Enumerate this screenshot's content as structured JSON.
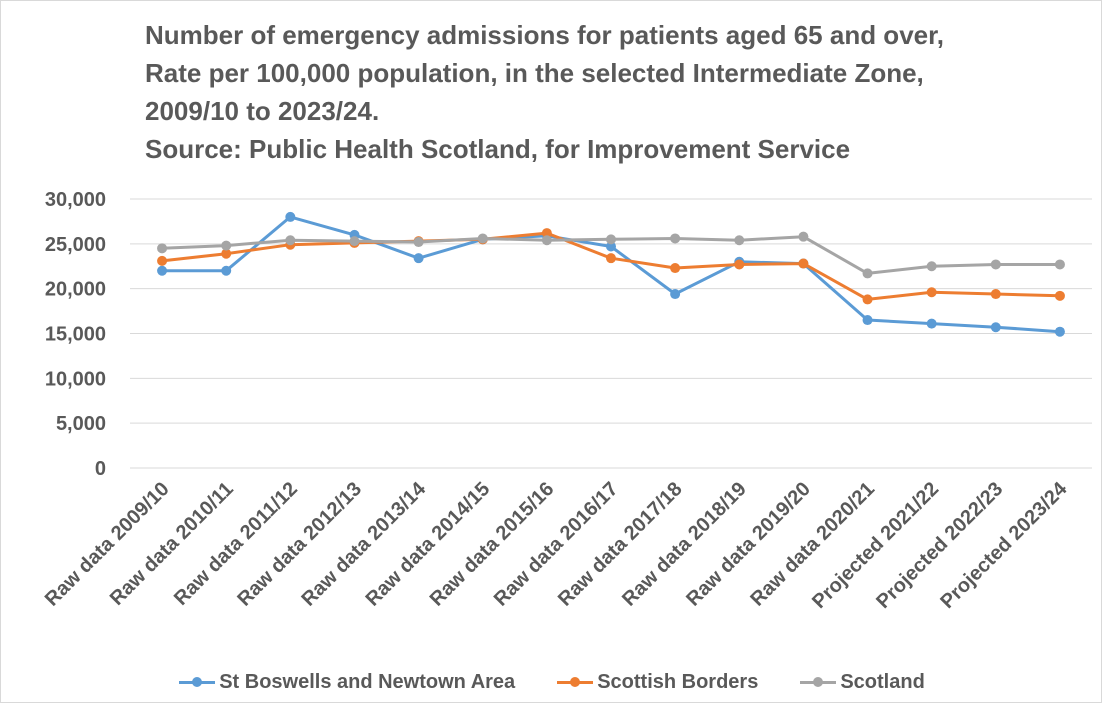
{
  "chart_data": {
    "type": "line",
    "title_lines": [
      "Number of emergency admissions for patients aged 65 and over,",
      "Rate per 100,000 population, in the selected Intermediate Zone,",
      "2009/10 to 2023/24.",
      "Source: Public Health Scotland, for Improvement Service"
    ],
    "xlabel": "",
    "ylabel": "",
    "ylim": [
      0,
      30000
    ],
    "yticks": [
      0,
      5000,
      10000,
      15000,
      20000,
      25000,
      30000
    ],
    "ytick_labels": [
      "0",
      "5,000",
      "10,000",
      "15,000",
      "20,000",
      "25,000",
      "30,000"
    ],
    "grid": true,
    "legend_position": "bottom",
    "categories": [
      "Raw data 2009/10",
      "Raw data 2010/11",
      "Raw data 2011/12",
      "Raw data 2012/13",
      "Raw data 2013/14",
      "Raw data 2014/15",
      "Raw data 2015/16",
      "Raw data 2016/17",
      "Raw data 2017/18",
      "Raw data 2018/19",
      "Raw data 2019/20",
      "Raw data 2020/21",
      "Projected 2021/22",
      "Projected 2022/23",
      "Projected 2023/24"
    ],
    "series": [
      {
        "name": "St Boswells and Newtown Area",
        "color": "#5b9bd5",
        "values": [
          22000,
          22000,
          28000,
          26000,
          23400,
          25500,
          25900,
          24700,
          19400,
          23000,
          22800,
          16500,
          16100,
          15700,
          15200
        ]
      },
      {
        "name": "Scottish Borders",
        "color": "#ed7d31",
        "values": [
          23100,
          23900,
          24900,
          25100,
          25300,
          25500,
          26200,
          23400,
          22300,
          22700,
          22800,
          18800,
          19600,
          19400,
          19200
        ]
      },
      {
        "name": "Scotland",
        "color": "#a5a5a5",
        "values": [
          24500,
          24800,
          25400,
          25300,
          25200,
          25600,
          25400,
          25500,
          25600,
          25400,
          25800,
          21700,
          22500,
          22700,
          22700
        ]
      }
    ]
  }
}
